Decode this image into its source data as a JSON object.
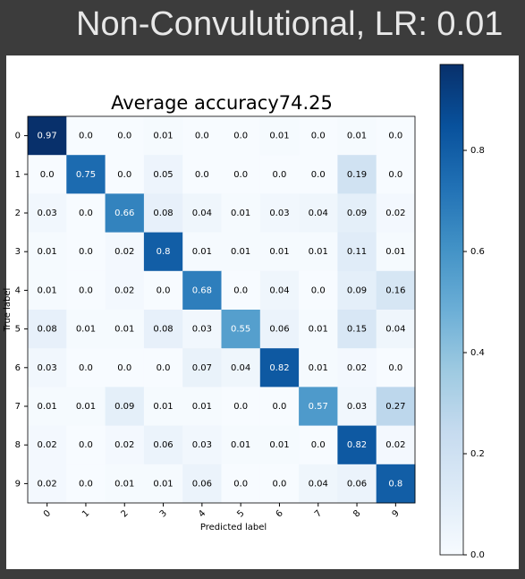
{
  "header": {
    "title": "Non-Convulutional, LR: 0.01"
  },
  "chart_data": {
    "type": "heatmap",
    "title": "Average accuracy74.25",
    "x_label": "Predicted label",
    "y_label": "True label",
    "x_categories": [
      "0",
      "1",
      "2",
      "3",
      "4",
      "5",
      "6",
      "7",
      "8",
      "9"
    ],
    "y_categories": [
      "0",
      "1",
      "2",
      "3",
      "4",
      "5",
      "6",
      "7",
      "8",
      "9"
    ],
    "values": [
      [
        0.97,
        0,
        0,
        0.01,
        0,
        0,
        0.01,
        0,
        0.01,
        0
      ],
      [
        0,
        0.75,
        0,
        0.05,
        0,
        0,
        0,
        0,
        0.19,
        0
      ],
      [
        0.03,
        0,
        0.66,
        0.08,
        0.04,
        0.01,
        0.03,
        0.04,
        0.09,
        0.02
      ],
      [
        0.01,
        0,
        0.02,
        0.8,
        0.01,
        0.01,
        0.01,
        0.01,
        0.11,
        0.01
      ],
      [
        0.01,
        0,
        0.02,
        0,
        0.68,
        0,
        0.04,
        0,
        0.09,
        0.16
      ],
      [
        0.08,
        0.01,
        0.01,
        0.08,
        0.03,
        0.55,
        0.06,
        0.01,
        0.15,
        0.04
      ],
      [
        0.03,
        0,
        0,
        0,
        0.07,
        0.04,
        0.82,
        0.01,
        0.02,
        0
      ],
      [
        0.01,
        0.01,
        0.09,
        0.01,
        0.01,
        0,
        0,
        0.57,
        0.03,
        0.27
      ],
      [
        0.02,
        0,
        0.02,
        0.06,
        0.03,
        0.01,
        0.01,
        0,
        0.82,
        0.02
      ],
      [
        0.02,
        0,
        0.01,
        0.01,
        0.06,
        0,
        0,
        0.04,
        0.06,
        0.8
      ]
    ],
    "value_labels": [
      [
        "0.97",
        "0.0",
        "0.0",
        "0.01",
        "0.0",
        "0.0",
        "0.01",
        "0.0",
        "0.01",
        "0.0"
      ],
      [
        "0.0",
        "0.75",
        "0.0",
        "0.05",
        "0.0",
        "0.0",
        "0.0",
        "0.0",
        "0.19",
        "0.0"
      ],
      [
        "0.03",
        "0.0",
        "0.66",
        "0.08",
        "0.04",
        "0.01",
        "0.03",
        "0.04",
        "0.09",
        "0.02"
      ],
      [
        "0.01",
        "0.0",
        "0.02",
        "0.8",
        "0.01",
        "0.01",
        "0.01",
        "0.01",
        "0.11",
        "0.01"
      ],
      [
        "0.01",
        "0.0",
        "0.02",
        "0.0",
        "0.68",
        "0.0",
        "0.04",
        "0.0",
        "0.09",
        "0.16"
      ],
      [
        "0.08",
        "0.01",
        "0.01",
        "0.08",
        "0.03",
        "0.55",
        "0.06",
        "0.01",
        "0.15",
        "0.04"
      ],
      [
        "0.03",
        "0.0",
        "0.0",
        "0.0",
        "0.07",
        "0.04",
        "0.82",
        "0.01",
        "0.02",
        "0.0"
      ],
      [
        "0.01",
        "0.01",
        "0.09",
        "0.01",
        "0.01",
        "0.0",
        "0.0",
        "0.57",
        "0.03",
        "0.27"
      ],
      [
        "0.02",
        "0.0",
        "0.02",
        "0.06",
        "0.03",
        "0.01",
        "0.01",
        "0.0",
        "0.82",
        "0.02"
      ],
      [
        "0.02",
        "0.0",
        "0.01",
        "0.01",
        "0.06",
        "0.0",
        "0.0",
        "0.04",
        "0.06",
        "0.8"
      ]
    ],
    "colormap": [
      "#f7fbff",
      "#deebf7",
      "#c6dbef",
      "#9ecae1",
      "#6baed6",
      "#4292c6",
      "#2171b5",
      "#08519c",
      "#08306b"
    ],
    "clim": [
      0,
      0.97
    ],
    "cticks": [
      {
        "value": 0,
        "label": "0.0"
      },
      0.2,
      0.4,
      0.6,
      0.8
    ]
  }
}
